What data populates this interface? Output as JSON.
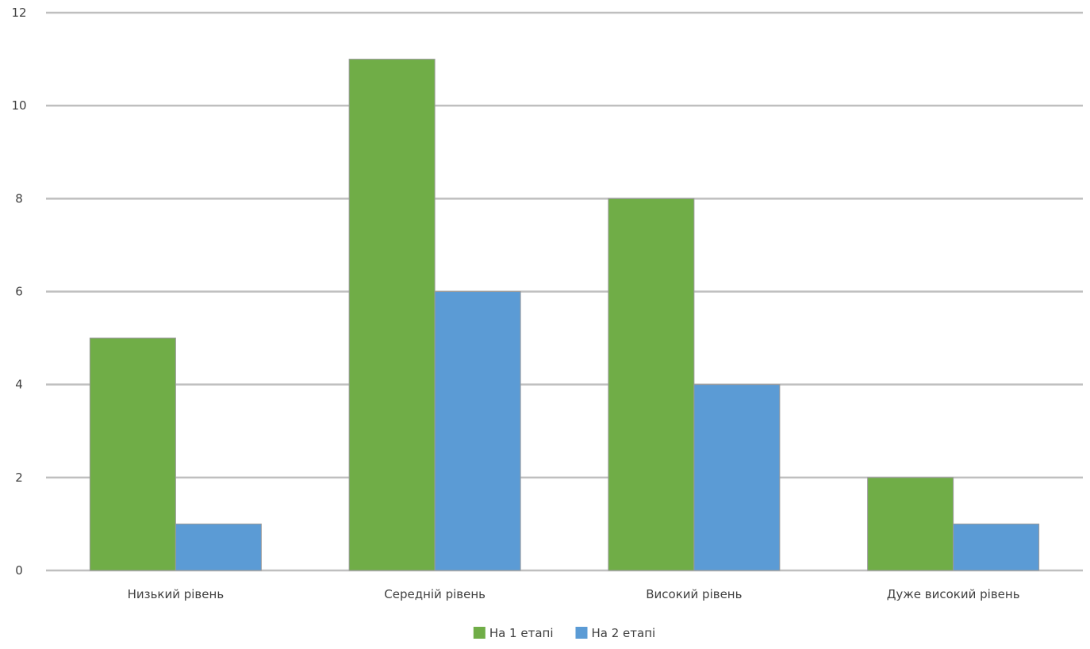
{
  "chart_data": {
    "type": "bar",
    "title": "",
    "xlabel": "",
    "ylabel": "",
    "ylim": [
      0,
      12
    ],
    "yticks": [
      0,
      2,
      4,
      6,
      8,
      10,
      12
    ],
    "grid": true,
    "legend_position": "bottom",
    "categories": [
      "Низький рівень",
      "Середній рівень",
      "Високий рівень",
      "Дуже високий рівень"
    ],
    "series": [
      {
        "name": "На 1 етапі",
        "color": "#70AD47",
        "values": [
          5,
          11,
          8,
          2
        ]
      },
      {
        "name": "На 2 етапі",
        "color": "#5B9BD5",
        "values": [
          1,
          6,
          4,
          1
        ]
      }
    ],
    "gridline_color": "#BFBFBF",
    "text_color": "#404040"
  }
}
